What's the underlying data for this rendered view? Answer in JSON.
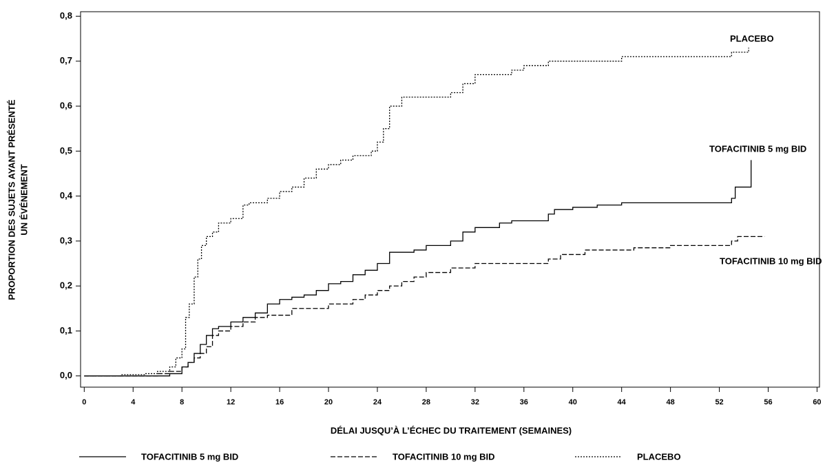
{
  "chart_data": {
    "type": "step",
    "x_label": "DÉLAI JUSQU’À L’ÉCHEC DU TRAITEMENT (SEMAINES)",
    "y_label": [
      "PROPORTION DES SUJETS AYANT PRÉSENTÉ",
      "UN ÉVÉNEMENT"
    ],
    "xlim": [
      -0.3,
      60.2
    ],
    "ylim": [
      -0.025,
      0.81
    ],
    "xticks": [
      0,
      4,
      8,
      12,
      16,
      20,
      24,
      28,
      32,
      36,
      40,
      44,
      48,
      52,
      56,
      60
    ],
    "yticks": [
      {
        "value": 0.0,
        "label": "0,0"
      },
      {
        "value": 0.1,
        "label": "0,1"
      },
      {
        "value": 0.2,
        "label": "0,2"
      },
      {
        "value": 0.3,
        "label": "0,3"
      },
      {
        "value": 0.4,
        "label": "0,4"
      },
      {
        "value": 0.5,
        "label": "0,5"
      },
      {
        "value": 0.6,
        "label": "0,6"
      },
      {
        "value": 0.7,
        "label": "0,7"
      },
      {
        "value": 0.8,
        "label": "0,8"
      }
    ],
    "series": [
      {
        "name": "TOFACITINIB 5 mg BID",
        "color": "#000000",
        "dash": "solid",
        "x": [
          0,
          7,
          8,
          8.5,
          9,
          9.5,
          10,
          10.5,
          11,
          12,
          13,
          14,
          15,
          16,
          17,
          18,
          19,
          20,
          21,
          22,
          23,
          24,
          25,
          27,
          28,
          30,
          31,
          32,
          34,
          35,
          38,
          38.5,
          40,
          42,
          44,
          53,
          53.3,
          54.6
        ],
        "values": [
          0,
          0.005,
          0.02,
          0.03,
          0.05,
          0.07,
          0.09,
          0.105,
          0.11,
          0.12,
          0.13,
          0.14,
          0.16,
          0.17,
          0.175,
          0.18,
          0.19,
          0.205,
          0.21,
          0.225,
          0.235,
          0.25,
          0.275,
          0.28,
          0.29,
          0.3,
          0.32,
          0.33,
          0.34,
          0.345,
          0.36,
          0.37,
          0.375,
          0.38,
          0.385,
          0.395,
          0.42,
          0.48
        ]
      },
      {
        "name": "TOFACITINIB 10 mg BID",
        "color": "#000000",
        "dash": "dashed",
        "x": [
          0,
          6,
          7,
          8,
          8.5,
          9,
          9.5,
          10,
          10.5,
          11,
          12,
          13,
          14,
          15,
          17,
          20,
          22,
          23,
          24,
          25,
          26,
          27,
          28,
          30,
          32,
          38,
          39,
          41,
          45,
          48,
          53,
          53.5,
          55.7
        ],
        "values": [
          0,
          0.005,
          0.01,
          0.02,
          0.03,
          0.04,
          0.05,
          0.065,
          0.09,
          0.1,
          0.11,
          0.12,
          0.13,
          0.135,
          0.15,
          0.16,
          0.17,
          0.18,
          0.19,
          0.2,
          0.21,
          0.22,
          0.23,
          0.24,
          0.25,
          0.26,
          0.27,
          0.28,
          0.285,
          0.29,
          0.3,
          0.31,
          0.31
        ]
      },
      {
        "name": "PLACEBO",
        "color": "#000000",
        "dash": "dotted",
        "x": [
          0,
          3,
          5,
          6,
          7,
          7.5,
          8,
          8.3,
          8.6,
          9,
          9.3,
          9.6,
          10,
          10.5,
          11,
          12,
          13,
          13.5,
          15,
          16,
          17,
          18,
          19,
          20,
          21,
          22,
          23,
          23.5,
          24,
          24.5,
          25,
          26,
          30,
          31,
          32,
          34,
          35,
          36,
          38,
          42,
          44,
          52,
          53,
          54.4
        ],
        "values": [
          0,
          0.003,
          0.005,
          0.01,
          0.02,
          0.04,
          0.06,
          0.13,
          0.16,
          0.22,
          0.26,
          0.29,
          0.31,
          0.32,
          0.34,
          0.35,
          0.38,
          0.385,
          0.395,
          0.41,
          0.42,
          0.44,
          0.46,
          0.47,
          0.48,
          0.49,
          0.49,
          0.5,
          0.52,
          0.55,
          0.6,
          0.62,
          0.63,
          0.65,
          0.67,
          0.67,
          0.68,
          0.69,
          0.7,
          0.7,
          0.71,
          0.71,
          0.72,
          0.73
        ]
      }
    ]
  }
}
